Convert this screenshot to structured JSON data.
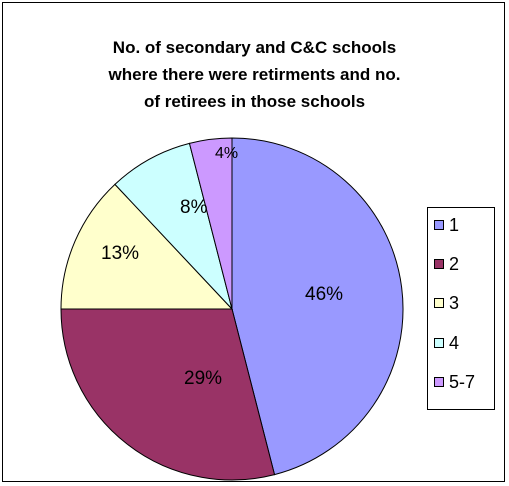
{
  "chart_data": {
    "type": "pie",
    "title": "No. of secondary and C&C schools where there were retirments and no. of retirees in those schools",
    "title_lines": [
      "No. of secondary and C&C schools",
      "where there were retirments and no.",
      "of retirees in those schools"
    ],
    "categories": [
      "1",
      "2",
      "3",
      "4",
      "5-7"
    ],
    "values": [
      46,
      29,
      13,
      8,
      4
    ],
    "data_labels": [
      "46%",
      "29%",
      "13%",
      "8%",
      "4%"
    ],
    "colors": [
      "#9999ff",
      "#993366",
      "#ffffcc",
      "#ccffff",
      "#cc99ff"
    ],
    "legend_position": "right",
    "start": "12 o'clock",
    "direction": "clockwise"
  }
}
